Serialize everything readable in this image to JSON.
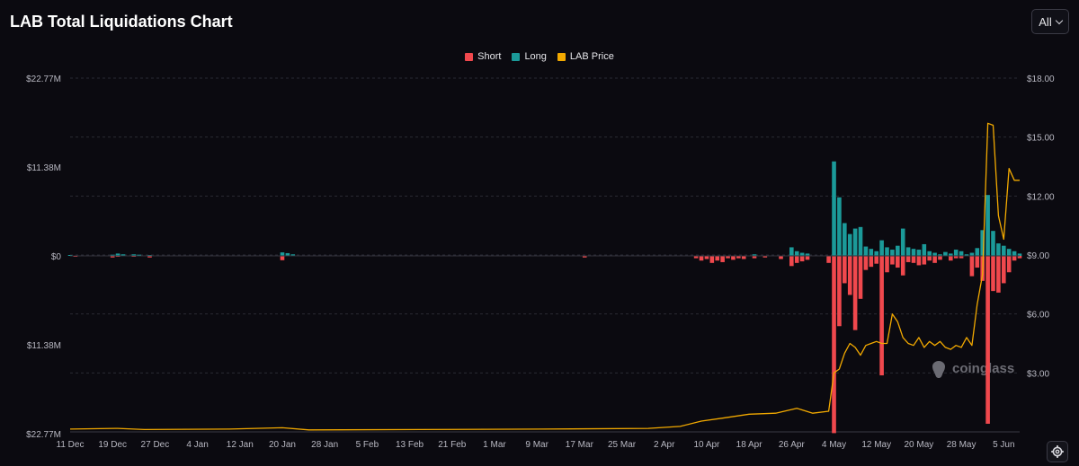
{
  "header": {
    "title": "LAB Total Liquidations Chart",
    "range_value": "All"
  },
  "watermark": "coinglass",
  "colors": {
    "short": "#f0484d",
    "long": "#1b9a99",
    "price": "#f2a900",
    "background": "#0b0a10"
  },
  "chart_data": {
    "type": "bar",
    "title": "LAB Total Liquidations Chart",
    "legend": [
      "Short",
      "Long",
      "LAB Price"
    ],
    "legend_position": "top-center",
    "grid": true,
    "y_left": {
      "ticks": [
        "$22.77M",
        "$11.38M",
        "$0",
        "$11.38M",
        "$22.77M"
      ],
      "tick_values": [
        22.77,
        11.38,
        0,
        -11.38,
        -22.77
      ],
      "range": [
        -22.77,
        22.77
      ],
      "unit": "$M"
    },
    "y_right": {
      "ticks": [
        "$18.00",
        "$15.00",
        "$12.00",
        "$9.00",
        "$6.00",
        "$3.00"
      ],
      "tick_values": [
        18,
        15,
        12,
        9,
        6,
        3
      ],
      "range": [
        0,
        18
      ]
    },
    "x_ticks": [
      "11 Dec",
      "19 Dec",
      "27 Dec",
      "4 Jan",
      "12 Jan",
      "20 Jan",
      "28 Jan",
      "5 Feb",
      "13 Feb",
      "21 Feb",
      "1 Mar",
      "9 Mar",
      "17 Mar",
      "25 Mar",
      "2 Apr",
      "10 Apr",
      "18 Apr",
      "26 Apr",
      "4 May",
      "12 May",
      "20 May",
      "28 May",
      "5 Jun"
    ],
    "x_start": "2024-12-11",
    "x_end": "2025-06-08",
    "series": [
      {
        "name": "Long",
        "points": [
          [
            "2024-12-11",
            0.1
          ],
          [
            "2024-12-19",
            0.15
          ],
          [
            "2024-12-20",
            0.3
          ],
          [
            "2024-12-21",
            0.2
          ],
          [
            "2024-12-23",
            0.2
          ],
          [
            "2024-12-24",
            0.15
          ],
          [
            "2024-12-26",
            0.1
          ],
          [
            "2025-01-20",
            0.45
          ],
          [
            "2025-01-21",
            0.35
          ],
          [
            "2025-01-22",
            0.2
          ],
          [
            "2025-04-19",
            0.2
          ],
          [
            "2025-04-26",
            1.1
          ],
          [
            "2025-04-27",
            0.6
          ],
          [
            "2025-04-28",
            0.4
          ],
          [
            "2025-04-29",
            0.3
          ],
          [
            "2025-05-04",
            12.1
          ],
          [
            "2025-05-05",
            7.5
          ],
          [
            "2025-05-06",
            4.2
          ],
          [
            "2025-05-07",
            2.8
          ],
          [
            "2025-05-08",
            3.5
          ],
          [
            "2025-05-09",
            3.7
          ],
          [
            "2025-05-10",
            1.2
          ],
          [
            "2025-05-11",
            0.9
          ],
          [
            "2025-05-12",
            0.6
          ],
          [
            "2025-05-13",
            2.0
          ],
          [
            "2025-05-14",
            1.1
          ],
          [
            "2025-05-15",
            0.8
          ],
          [
            "2025-05-16",
            1.3
          ],
          [
            "2025-05-17",
            3.5
          ],
          [
            "2025-05-18",
            1.1
          ],
          [
            "2025-05-19",
            0.9
          ],
          [
            "2025-05-20",
            0.8
          ],
          [
            "2025-05-21",
            1.5
          ],
          [
            "2025-05-22",
            0.6
          ],
          [
            "2025-05-23",
            0.4
          ],
          [
            "2025-05-24",
            0.2
          ],
          [
            "2025-05-25",
            0.5
          ],
          [
            "2025-05-26",
            0.3
          ],
          [
            "2025-05-27",
            0.8
          ],
          [
            "2025-05-28",
            0.6
          ],
          [
            "2025-05-29",
            0.2
          ],
          [
            "2025-05-30",
            0.4
          ],
          [
            "2025-05-31",
            1.0
          ],
          [
            "2025-06-01",
            3.3
          ],
          [
            "2025-06-02",
            7.8
          ],
          [
            "2025-06-03",
            3.2
          ],
          [
            "2025-06-04",
            1.6
          ],
          [
            "2025-06-05",
            1.3
          ],
          [
            "2025-06-06",
            0.9
          ],
          [
            "2025-06-07",
            0.6
          ],
          [
            "2025-06-08",
            0.3
          ]
        ]
      },
      {
        "name": "Short",
        "points": [
          [
            "2024-12-12",
            0.1
          ],
          [
            "2024-12-19",
            0.2
          ],
          [
            "2024-12-20",
            0.1
          ],
          [
            "2024-12-23",
            0.1
          ],
          [
            "2024-12-26",
            0.2
          ],
          [
            "2025-01-20",
            0.55
          ],
          [
            "2025-03-18",
            0.2
          ],
          [
            "2025-04-08",
            0.3
          ],
          [
            "2025-04-09",
            0.6
          ],
          [
            "2025-04-10",
            0.4
          ],
          [
            "2025-04-11",
            0.9
          ],
          [
            "2025-04-12",
            0.6
          ],
          [
            "2025-04-13",
            0.8
          ],
          [
            "2025-04-14",
            0.3
          ],
          [
            "2025-04-15",
            0.5
          ],
          [
            "2025-04-16",
            0.3
          ],
          [
            "2025-04-17",
            0.4
          ],
          [
            "2025-04-19",
            0.3
          ],
          [
            "2025-04-21",
            0.2
          ],
          [
            "2025-04-24",
            0.4
          ],
          [
            "2025-04-26",
            1.3
          ],
          [
            "2025-04-27",
            0.9
          ],
          [
            "2025-04-28",
            0.7
          ],
          [
            "2025-04-29",
            0.5
          ],
          [
            "2025-05-03",
            0.9
          ],
          [
            "2025-05-04",
            22.7
          ],
          [
            "2025-05-05",
            9.0
          ],
          [
            "2025-05-06",
            3.5
          ],
          [
            "2025-05-07",
            5.0
          ],
          [
            "2025-05-08",
            9.5
          ],
          [
            "2025-05-09",
            5.5
          ],
          [
            "2025-05-10",
            1.8
          ],
          [
            "2025-05-11",
            1.4
          ],
          [
            "2025-05-12",
            1.0
          ],
          [
            "2025-05-13",
            15.3
          ],
          [
            "2025-05-14",
            2.1
          ],
          [
            "2025-05-15",
            1.1
          ],
          [
            "2025-05-16",
            1.5
          ],
          [
            "2025-05-17",
            2.5
          ],
          [
            "2025-05-18",
            0.8
          ],
          [
            "2025-05-19",
            0.9
          ],
          [
            "2025-05-20",
            1.2
          ],
          [
            "2025-05-21",
            1.1
          ],
          [
            "2025-05-22",
            0.6
          ],
          [
            "2025-05-23",
            0.9
          ],
          [
            "2025-05-24",
            0.5
          ],
          [
            "2025-05-26",
            0.6
          ],
          [
            "2025-05-27",
            0.3
          ],
          [
            "2025-05-28",
            0.3
          ],
          [
            "2025-05-30",
            2.6
          ],
          [
            "2025-05-31",
            1.5
          ],
          [
            "2025-06-01",
            3.2
          ],
          [
            "2025-06-02",
            21.5
          ],
          [
            "2025-06-03",
            4.5
          ],
          [
            "2025-06-04",
            4.7
          ],
          [
            "2025-06-05",
            3.5
          ],
          [
            "2025-06-06",
            2.1
          ],
          [
            "2025-06-07",
            0.6
          ],
          [
            "2025-06-08",
            0.3
          ]
        ]
      },
      {
        "name": "LAB Price",
        "points": [
          [
            "2024-12-11",
            0.14
          ],
          [
            "2024-12-20",
            0.18
          ],
          [
            "2024-12-25",
            0.12
          ],
          [
            "2025-01-10",
            0.14
          ],
          [
            "2025-01-20",
            0.21
          ],
          [
            "2025-01-25",
            0.1
          ],
          [
            "2025-02-15",
            0.12
          ],
          [
            "2025-03-10",
            0.14
          ],
          [
            "2025-03-30",
            0.18
          ],
          [
            "2025-04-05",
            0.28
          ],
          [
            "2025-04-09",
            0.55
          ],
          [
            "2025-04-13",
            0.7
          ],
          [
            "2025-04-18",
            0.9
          ],
          [
            "2025-04-23",
            0.95
          ],
          [
            "2025-04-27",
            1.2
          ],
          [
            "2025-04-30",
            0.95
          ],
          [
            "2025-05-03",
            1.05
          ],
          [
            "2025-05-04",
            3.0
          ],
          [
            "2025-05-05",
            3.2
          ],
          [
            "2025-05-06",
            4.0
          ],
          [
            "2025-05-07",
            4.5
          ],
          [
            "2025-05-08",
            4.3
          ],
          [
            "2025-05-09",
            3.9
          ],
          [
            "2025-05-10",
            4.4
          ],
          [
            "2025-05-11",
            4.5
          ],
          [
            "2025-05-12",
            4.6
          ],
          [
            "2025-05-13",
            4.5
          ],
          [
            "2025-05-14",
            4.5
          ],
          [
            "2025-05-15",
            6.0
          ],
          [
            "2025-05-16",
            5.6
          ],
          [
            "2025-05-17",
            4.8
          ],
          [
            "2025-05-18",
            4.5
          ],
          [
            "2025-05-19",
            4.4
          ],
          [
            "2025-05-20",
            4.8
          ],
          [
            "2025-05-21",
            4.3
          ],
          [
            "2025-05-22",
            4.6
          ],
          [
            "2025-05-23",
            4.4
          ],
          [
            "2025-05-24",
            4.6
          ],
          [
            "2025-05-25",
            4.3
          ],
          [
            "2025-05-26",
            4.2
          ],
          [
            "2025-05-27",
            4.4
          ],
          [
            "2025-05-28",
            4.3
          ],
          [
            "2025-05-29",
            4.8
          ],
          [
            "2025-05-30",
            4.4
          ],
          [
            "2025-05-31",
            6.5
          ],
          [
            "2025-06-01",
            8.0
          ],
          [
            "2025-06-02",
            15.7
          ],
          [
            "2025-06-03",
            15.6
          ],
          [
            "2025-06-04",
            11.0
          ],
          [
            "2025-06-05",
            9.8
          ],
          [
            "2025-06-06",
            13.4
          ],
          [
            "2025-06-07",
            12.8
          ],
          [
            "2025-06-08",
            12.8
          ]
        ]
      }
    ]
  }
}
